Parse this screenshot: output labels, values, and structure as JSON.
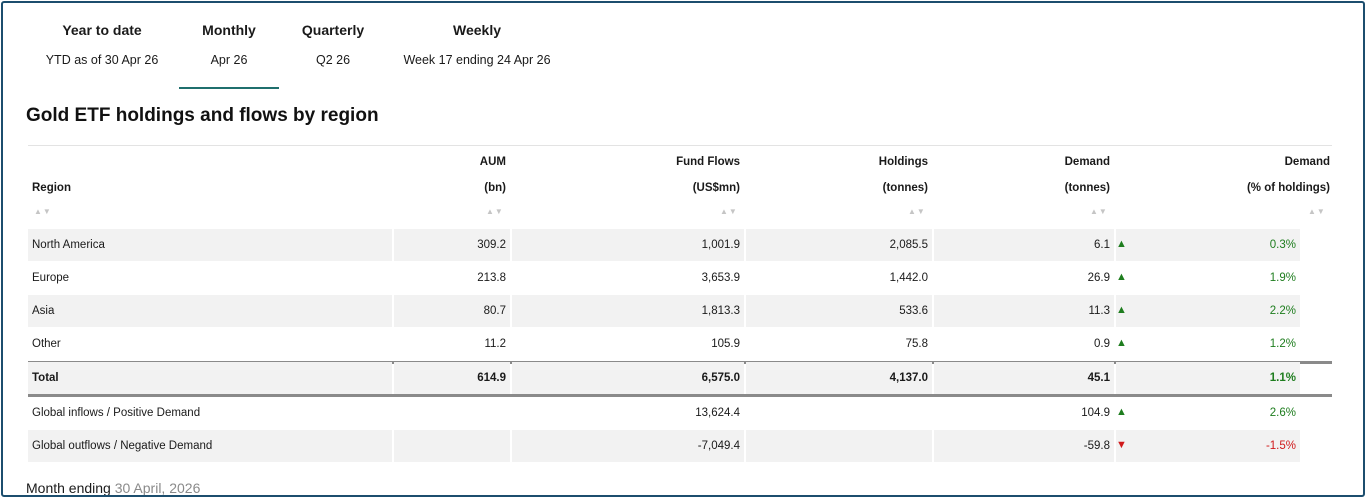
{
  "tabs": [
    {
      "title": "Year to date",
      "subtitle": "YTD as of 30 Apr 26",
      "active": false
    },
    {
      "title": "Monthly",
      "subtitle": "Apr 26",
      "active": true
    },
    {
      "title": "Quarterly",
      "subtitle": "Q2 26",
      "active": false
    },
    {
      "title": "Weekly",
      "subtitle": "Week 17 ending 24 Apr 26",
      "active": false
    }
  ],
  "heading": "Gold ETF holdings and flows by region",
  "columns": [
    {
      "line1": "",
      "line2": "Region"
    },
    {
      "line1": "AUM",
      "line2": "(bn)"
    },
    {
      "line1": "Fund Flows",
      "line2": "(US$mn)"
    },
    {
      "line1": "Holdings",
      "line2": "(tonnes)"
    },
    {
      "line1": "Demand",
      "line2": "(tonnes)"
    },
    {
      "line1": "Demand",
      "line2": "(% of holdings)"
    }
  ],
  "sort_icon": "sort-arrows-icon",
  "rows": [
    {
      "region": "North America",
      "aum": "309.2",
      "flows": "1,001.9",
      "holdings": "2,085.5",
      "demand": "6.1",
      "trend": "up",
      "pct": "0.3%"
    },
    {
      "region": "Europe",
      "aum": "213.8",
      "flows": "3,653.9",
      "holdings": "1,442.0",
      "demand": "26.9",
      "trend": "up",
      "pct": "1.9%"
    },
    {
      "region": "Asia",
      "aum": "80.7",
      "flows": "1,813.3",
      "holdings": "533.6",
      "demand": "11.3",
      "trend": "up",
      "pct": "2.2%"
    },
    {
      "region": "Other",
      "aum": "11.2",
      "flows": "105.9",
      "holdings": "75.8",
      "demand": "0.9",
      "trend": "up",
      "pct": "1.2%"
    }
  ],
  "total": {
    "region": "Total",
    "aum": "614.9",
    "flows": "6,575.0",
    "holdings": "4,137.0",
    "demand": "45.1",
    "pct": "1.1%"
  },
  "global": [
    {
      "region": "Global inflows / Positive Demand",
      "flows": "13,624.4",
      "demand": "104.9",
      "trend": "up",
      "pct": "2.6%"
    },
    {
      "region": "Global outflows / Negative Demand",
      "flows": "-7,049.4",
      "demand": "-59.8",
      "trend": "down",
      "pct": "-1.5%"
    }
  ],
  "footer": {
    "label": "Month ending",
    "date": "30 April, 2026"
  },
  "colors": {
    "positive": "#1e7d1e",
    "negative": "#d0191b",
    "tab_underline": "#1f6f6d",
    "frame": "#1c4e6e"
  }
}
